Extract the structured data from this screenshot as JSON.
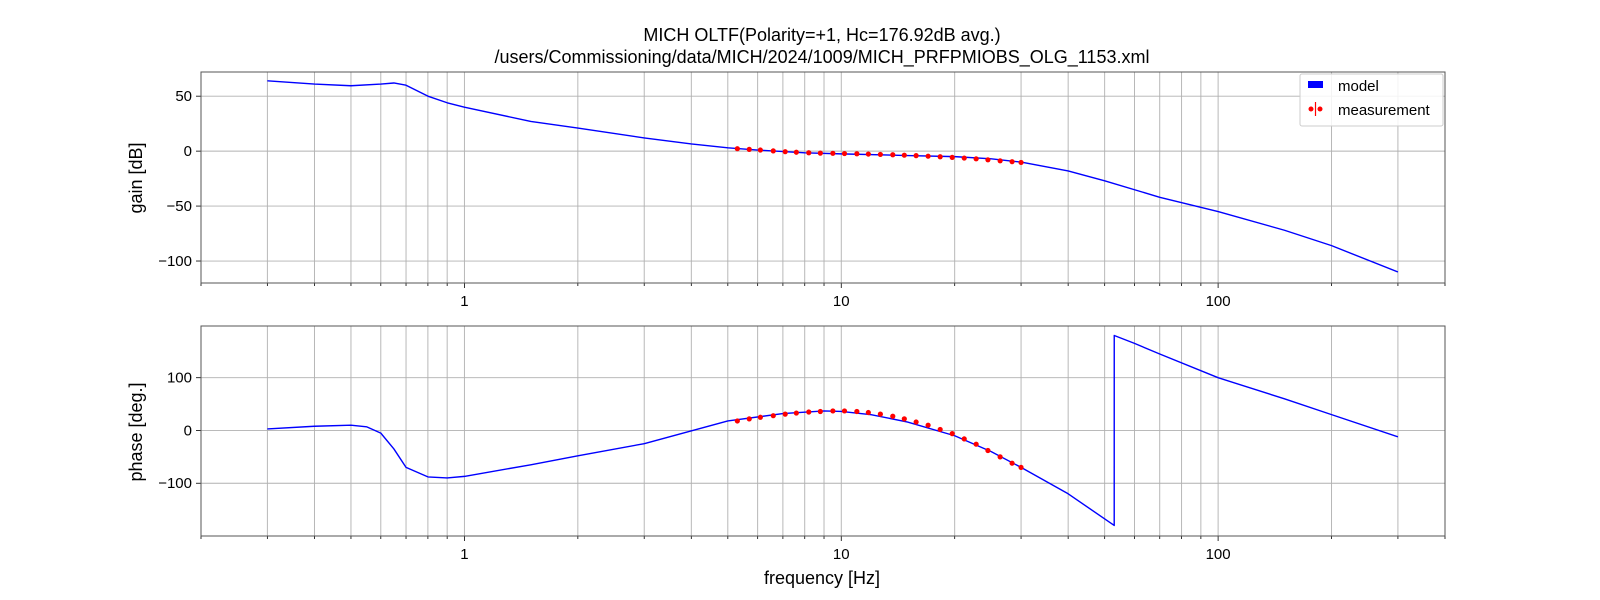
{
  "chart_data": {
    "type": "line",
    "title": "MICH OLTF(Polarity=+1,  Hc=176.92dB avg.)",
    "subtitle": "/users/Commissioning/data/MICH/2024/1009/MICH_PRFPMIOBS_OLG_1153.xml",
    "xlabel": "frequency [Hz]",
    "xscale": "log",
    "xlim": [
      0.2,
      400
    ],
    "xticks": [
      1,
      10,
      100
    ],
    "xtick_labels": [
      "1",
      "10",
      "100"
    ],
    "grid": true,
    "legend": {
      "placement": "top-right",
      "entries": [
        "model",
        "measurement"
      ]
    },
    "colors": {
      "model": "#0000ff",
      "measurement": "#ff0000",
      "grid": "#b0b0b0"
    },
    "panels": [
      {
        "name": "gain",
        "ylabel": "gain [dB]",
        "ylim": [
          -120,
          72
        ],
        "yticks": [
          50,
          0,
          -50,
          -100
        ],
        "ytick_labels": [
          "50",
          "0",
          "−50",
          "−100"
        ],
        "model": {
          "x": [
            0.3,
            0.4,
            0.5,
            0.6,
            0.65,
            0.7,
            0.8,
            0.9,
            1,
            1.5,
            2,
            3,
            4,
            5,
            6,
            8,
            10,
            15,
            20,
            25,
            30,
            40,
            50,
            70,
            100,
            150,
            200,
            300
          ],
          "y": [
            64,
            61,
            59.5,
            61,
            62,
            60,
            50,
            44,
            40,
            27,
            21,
            12,
            6.5,
            3,
            1,
            -1.5,
            -2.5,
            -4,
            -5,
            -7,
            -10,
            -18,
            -27,
            -42,
            -55,
            -72,
            -86,
            -110
          ]
        },
        "measurement": {
          "x": [
            5.3,
            5.7,
            6.1,
            6.6,
            7.1,
            7.6,
            8.2,
            8.8,
            9.5,
            10.2,
            11,
            11.8,
            12.7,
            13.7,
            14.7,
            15.8,
            17,
            18.3,
            19.7,
            21.2,
            22.8,
            24.5,
            26.4,
            28.4,
            30
          ],
          "y": [
            2.2,
            1.6,
            1,
            0.2,
            -0.5,
            -1,
            -1.5,
            -1.8,
            -2,
            -2.2,
            -2.4,
            -2.7,
            -3,
            -3.3,
            -3.7,
            -4.1,
            -4.6,
            -5.1,
            -5.7,
            -6.3,
            -7,
            -7.9,
            -8.8,
            -9.6,
            -10.3
          ]
        }
      },
      {
        "name": "phase",
        "ylabel": "phase [deg.]",
        "ylim": [
          -200,
          198
        ],
        "yticks": [
          100,
          0,
          -100
        ],
        "ytick_labels": [
          "100",
          "0",
          "−100"
        ],
        "model": {
          "x": [
            0.3,
            0.4,
            0.5,
            0.55,
            0.6,
            0.65,
            0.7,
            0.8,
            0.9,
            1,
            1.5,
            2,
            3,
            5,
            7,
            9,
            10,
            12,
            15,
            20,
            25,
            30,
            40,
            53,
            53.01,
            60,
            70,
            100,
            150,
            200,
            300
          ],
          "y": [
            3,
            8,
            10,
            7,
            -5,
            -35,
            -70,
            -88,
            -90,
            -87,
            -65,
            -48,
            -25,
            18,
            32,
            37,
            36,
            30,
            16,
            -10,
            -40,
            -70,
            -120,
            -180,
            180,
            165,
            145,
            100,
            60,
            30,
            -12
          ]
        },
        "measurement": {
          "x": [
            5.3,
            5.7,
            6.1,
            6.6,
            7.1,
            7.6,
            8.2,
            8.8,
            9.5,
            10.2,
            11,
            11.8,
            12.7,
            13.7,
            14.7,
            15.8,
            17,
            18.3,
            19.7,
            21.2,
            22.8,
            24.5,
            26.4,
            28.4,
            30
          ],
          "y": [
            18,
            22,
            25,
            28,
            31,
            33,
            35,
            36,
            37,
            37,
            36,
            34,
            31,
            27,
            22,
            16,
            10,
            2,
            -6,
            -16,
            -26,
            -38,
            -50,
            -62,
            -70
          ]
        }
      }
    ]
  }
}
